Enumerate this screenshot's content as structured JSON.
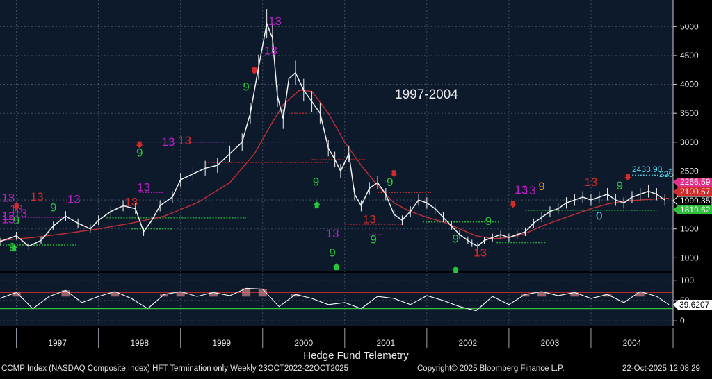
{
  "chart_data": {
    "type": "line",
    "title": "1997-2004",
    "xlabel": "Hedge Fund Telemetry",
    "colors": {
      "price": "#f2f2f2",
      "ma": "#c0303a",
      "rsi_line": "#ffffff",
      "rsi_fill": "#c97b84",
      "upper": "#d12c2c",
      "lower": "#2fbf3a",
      "panel_bg": "#0d1a2b"
    },
    "x_ticks": [
      "1997",
      "1998",
      "1999",
      "2000",
      "2001",
      "2002",
      "2003",
      "2004"
    ],
    "y_ticks": [
      1000,
      1500,
      2000,
      2500,
      3000,
      3500,
      4000,
      4500,
      5000
    ],
    "ylim": [
      800,
      5400
    ],
    "rsi_ticks": [
      0,
      50,
      100
    ],
    "rsi_ylim": [
      -10,
      115
    ],
    "rsi_levels": [
      70,
      30
    ],
    "series": [
      {
        "role": "price",
        "x": [
          1996.8,
          1997.0,
          1997.15,
          1997.3,
          1997.45,
          1997.6,
          1997.75,
          1997.9,
          1998.0,
          1998.15,
          1998.3,
          1998.45,
          1998.55,
          1998.65,
          1998.75,
          1998.9,
          1999.0,
          1999.15,
          1999.3,
          1999.45,
          1999.6,
          1999.75,
          1999.85,
          1999.95,
          2000.05,
          2000.12,
          2000.18,
          2000.25,
          2000.32,
          2000.4,
          2000.5,
          2000.6,
          2000.7,
          2000.8,
          2000.88,
          2000.95,
          2001.05,
          2001.12,
          2001.2,
          2001.3,
          2001.4,
          2001.5,
          2001.6,
          2001.7,
          2001.8,
          2001.9,
          2002.0,
          2002.1,
          2002.2,
          2002.3,
          2002.4,
          2002.5,
          2002.55,
          2002.62,
          2002.7,
          2002.8,
          2002.9,
          2003.0,
          2003.1,
          2003.2,
          2003.3,
          2003.4,
          2003.5,
          2003.6,
          2003.7,
          2003.8,
          2003.9,
          2004.0,
          2004.1,
          2004.2,
          2004.3,
          2004.4,
          2004.5,
          2004.6,
          2004.7,
          2004.8,
          2004.9
        ],
        "values": [
          1280,
          1380,
          1200,
          1300,
          1550,
          1720,
          1600,
          1500,
          1650,
          1800,
          1900,
          1850,
          1450,
          1650,
          1900,
          2050,
          2350,
          2450,
          2550,
          2600,
          2800,
          3000,
          3500,
          4300,
          5050,
          4800,
          3800,
          3400,
          4100,
          4200,
          3900,
          3700,
          3500,
          2900,
          2700,
          2500,
          2800,
          2100,
          1900,
          2200,
          2300,
          2100,
          1750,
          1650,
          1800,
          2000,
          1950,
          1850,
          1700,
          1550,
          1400,
          1300,
          1250,
          1200,
          1300,
          1350,
          1400,
          1350,
          1400,
          1450,
          1600,
          1700,
          1800,
          1850,
          1950,
          2000,
          2050,
          2000,
          2050,
          2100,
          2000,
          1950,
          2050,
          2100,
          2150,
          2100,
          2000
        ]
      },
      {
        "role": "ma",
        "x": [
          1996.8,
          1997.2,
          1997.6,
          1998.0,
          1998.4,
          1998.8,
          1999.2,
          1999.6,
          1999.9,
          2000.1,
          2000.25,
          2000.45,
          2000.6,
          2000.8,
          2001.0,
          2001.2,
          2001.4,
          2001.6,
          2001.8,
          2002.0,
          2002.2,
          2002.4,
          2002.6,
          2002.8,
          2003.0,
          2003.2,
          2003.4,
          2003.6,
          2003.8,
          2004.0,
          2004.2,
          2004.4,
          2004.6,
          2004.8,
          2004.95
        ],
        "values": [
          1300,
          1350,
          1420,
          1500,
          1600,
          1720,
          1950,
          2300,
          2800,
          3300,
          3650,
          3900,
          3880,
          3500,
          3000,
          2600,
          2250,
          1950,
          1800,
          1700,
          1620,
          1500,
          1380,
          1330,
          1350,
          1420,
          1550,
          1650,
          1750,
          1850,
          1930,
          1980,
          2000,
          2020,
          2030
        ]
      },
      {
        "role": "rsi",
        "x": [
          1996.8,
          1997.0,
          1997.2,
          1997.4,
          1997.6,
          1997.8,
          1998.0,
          1998.2,
          1998.4,
          1998.6,
          1998.8,
          1999.0,
          1999.2,
          1999.4,
          1999.6,
          1999.8,
          2000.0,
          2000.2,
          2000.4,
          2000.6,
          2000.8,
          2001.0,
          2001.2,
          2001.4,
          2001.6,
          2001.8,
          2002.0,
          2002.2,
          2002.4,
          2002.6,
          2002.8,
          2003.0,
          2003.2,
          2003.4,
          2003.6,
          2003.8,
          2004.0,
          2004.2,
          2004.4,
          2004.6,
          2004.8,
          2004.95
        ],
        "values": [
          55,
          70,
          30,
          60,
          75,
          45,
          60,
          72,
          55,
          30,
          65,
          72,
          60,
          70,
          62,
          80,
          78,
          35,
          65,
          55,
          40,
          45,
          30,
          60,
          55,
          40,
          62,
          50,
          35,
          25,
          60,
          40,
          65,
          72,
          62,
          70,
          55,
          65,
          45,
          72,
          60,
          40
        ]
      }
    ],
    "rsi_last_label": "39.6207",
    "price_labels": [
      {
        "text": "2266.59",
        "color": "#e0308a"
      },
      {
        "text": "2100.57",
        "color": "#d12c2c"
      },
      {
        "text": "1999.35",
        "color": "#ffffff"
      },
      {
        "text": "1819.62",
        "color": "#2fbf3a"
      }
    ],
    "level_text": {
      "a": "2433.90",
      "b": "235"
    },
    "segments": [
      {
        "x1": 1997.0,
        "x2": 1997.6,
        "y": 1700,
        "color": "#c21fc9"
      },
      {
        "x1": 1998.4,
        "x2": 1998.9,
        "y": 1500,
        "color": "#27c53b"
      },
      {
        "x1": 1998.1,
        "x2": 1999.8,
        "y": 1690,
        "color": "#27c53b"
      },
      {
        "x1": 1996.8,
        "x2": 1997.75,
        "y": 1220,
        "color": "#27c53b"
      },
      {
        "x1": 1998.5,
        "x2": 1998.8,
        "y": 2130,
        "color": "#c21fc9"
      },
      {
        "x1": 1999.0,
        "x2": 1999.55,
        "y": 3000,
        "color": "#c21fc9"
      },
      {
        "x1": 1999.3,
        "x2": 2000.8,
        "y": 2650,
        "color": "#d12c2c"
      },
      {
        "x1": 2000.35,
        "x2": 2000.55,
        "y": 3500,
        "color": "#d12c2c"
      },
      {
        "x1": 2000.6,
        "x2": 2001.25,
        "y": 2700,
        "color": "#d12c2c"
      },
      {
        "x1": 2001.4,
        "x2": 2002.05,
        "y": 2130,
        "color": "#d12c2c"
      },
      {
        "x1": 2001.0,
        "x2": 2001.7,
        "y": 1580,
        "color": "#d12c2c"
      },
      {
        "x1": 2001.3,
        "x2": 2001.45,
        "y": 1400,
        "color": "#c21fc9"
      },
      {
        "x1": 2001.95,
        "x2": 2002.9,
        "y": 1620,
        "color": "#27c53b"
      },
      {
        "x1": 2002.85,
        "x2": 2003.45,
        "y": 1260,
        "color": "#27c53b"
      },
      {
        "x1": 2003.2,
        "x2": 2004.8,
        "y": 1820,
        "color": "#27c53b"
      },
      {
        "x1": 2004.5,
        "x2": 2004.95,
        "y": 2430,
        "color": "#4fd7f0"
      },
      {
        "x1": 2004.65,
        "x2": 2004.95,
        "y": 2260,
        "color": "#c21fc9"
      }
    ],
    "annotations": [
      {
        "text": "13",
        "x": 1996.9,
        "y": 1970,
        "color": "#c21fc9"
      },
      {
        "text": "13",
        "x": 1996.9,
        "y": 1600,
        "color": "#c21fc9"
      },
      {
        "text": "12",
        "x": 1996.9,
        "y": 1650,
        "color": "#c21fc9"
      },
      {
        "text": "9",
        "x": 1997.0,
        "y": 1580,
        "color": "#27c53b"
      },
      {
        "text": "13",
        "x": 1997.05,
        "y": 1700,
        "color": "#c21fc9"
      },
      {
        "text": "13",
        "x": 1997.25,
        "y": 1990,
        "color": "#d12c2c"
      },
      {
        "text": "9",
        "x": 1996.95,
        "y": 1120,
        "color": "#27c53b"
      },
      {
        "text": "13",
        "x": 1997.0,
        "y": 1780,
        "color": "#c21fc9"
      },
      {
        "text": "9",
        "x": 1997.45,
        "y": 1800,
        "color": "#27c53b"
      },
      {
        "text": "13",
        "x": 1997.7,
        "y": 1950,
        "color": "#c21fc9"
      },
      {
        "text": "13",
        "x": 1998.4,
        "y": 1900,
        "color": "#d12c2c"
      },
      {
        "text": "13",
        "x": 1998.55,
        "y": 2150,
        "color": "#c21fc9"
      },
      {
        "text": "9",
        "x": 1998.5,
        "y": 2750,
        "color": "#27c53b"
      },
      {
        "text": "13",
        "x": 1998.85,
        "y": 2940,
        "color": "#c21fc9"
      },
      {
        "text": "13",
        "x": 1999.05,
        "y": 2960,
        "color": "#d12c2c"
      },
      {
        "text": "9",
        "x": 1999.8,
        "y": 3890,
        "color": "#27c53b"
      },
      {
        "text": "13",
        "x": 2000.1,
        "y": 4520,
        "color": "#c21fc9"
      },
      {
        "text": "13",
        "x": 2000.15,
        "y": 5030,
        "color": "#c21fc9"
      },
      {
        "text": "9",
        "x": 2000.65,
        "y": 2250,
        "color": "#27c53b"
      },
      {
        "text": "13",
        "x": 2000.85,
        "y": 1350,
        "color": "#c21fc9"
      },
      {
        "text": "9",
        "x": 2000.85,
        "y": 1020,
        "color": "#27c53b"
      },
      {
        "text": "13",
        "x": 2001.3,
        "y": 1600,
        "color": "#d12c2c"
      },
      {
        "text": "9",
        "x": 2001.35,
        "y": 1250,
        "color": "#27c53b"
      },
      {
        "text": "9",
        "x": 2001.55,
        "y": 2240,
        "color": "#27c53b"
      },
      {
        "text": "9",
        "x": 2002.35,
        "y": 1260,
        "color": "#27c53b"
      },
      {
        "text": "13",
        "x": 2002.65,
        "y": 1020,
        "color": "#d12c2c"
      },
      {
        "text": "9",
        "x": 2002.75,
        "y": 1570,
        "color": "#27c53b"
      },
      {
        "text": "13",
        "x": 2003.15,
        "y": 2110,
        "color": "#c21fc9"
      },
      {
        "text": "13",
        "x": 2003.25,
        "y": 2100,
        "color": "#c21fc9"
      },
      {
        "text": "9",
        "x": 2003.4,
        "y": 2170,
        "color": "#e89d1a"
      },
      {
        "text": "13",
        "x": 2004.0,
        "y": 2240,
        "color": "#d12c2c"
      },
      {
        "text": "9",
        "x": 2004.35,
        "y": 2180,
        "color": "#27c53b"
      },
      {
        "text": "0",
        "x": 2004.1,
        "y": 1660,
        "color": "#4fd7f0"
      }
    ],
    "arrows": [
      {
        "x": 1997.0,
        "y": 1860,
        "dir": "down",
        "color": "#d12c2c"
      },
      {
        "x": 1998.5,
        "y": 2930,
        "dir": "down",
        "color": "#d12c2c"
      },
      {
        "x": 1999.9,
        "y": 4210,
        "dir": "down",
        "color": "#d12c2c"
      },
      {
        "x": 2001.6,
        "y": 2430,
        "dir": "down",
        "color": "#d12c2c"
      },
      {
        "x": 2003.05,
        "y": 1900,
        "dir": "down",
        "color": "#d12c2c"
      },
      {
        "x": 2004.45,
        "y": 2370,
        "dir": "down",
        "color": "#d12c2c"
      },
      {
        "x": 1996.97,
        "y": 1195,
        "dir": "up",
        "color": "#27c53b"
      },
      {
        "x": 2000.66,
        "y": 1940,
        "dir": "up",
        "color": "#27c53b"
      },
      {
        "x": 2000.9,
        "y": 870,
        "dir": "up",
        "color": "#27c53b"
      },
      {
        "x": 2002.35,
        "y": 820,
        "dir": "up",
        "color": "#27c53b"
      }
    ]
  },
  "footer": {
    "left": "CCMP Index (NASDAQ Composite Index) HFT Termination only Weekly 23OCT2022-22OCT2025",
    "center": "Copyright© 2025 Bloomberg Finance L.P.",
    "right": "22-Oct-2025 12:08:29"
  }
}
